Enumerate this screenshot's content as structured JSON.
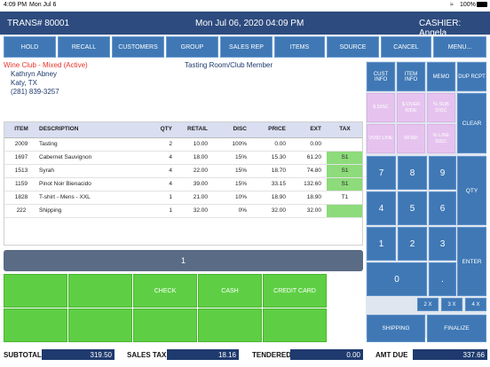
{
  "status": {
    "time": "4:09 PM",
    "date": "Mon Jul 6",
    "battery": "100%"
  },
  "header": {
    "trans": "TRANS# 80001",
    "datetime": "Mon Jul 06, 2020 04:09 PM",
    "cashier": "CASHIER: Angela"
  },
  "toolbar": [
    "HOLD",
    "RECALL",
    "CUSTOMERS",
    "GROUP",
    "SALES REP",
    "ITEMS",
    "SOURCE",
    "CANCEL",
    "MENU..."
  ],
  "customer": {
    "club": "Wine Club - Mixed (Active)",
    "name": "Kathryn Abney",
    "location": "Katy, TX",
    "phone": "(281) 839-3257",
    "type": "Tasting Room/Club Member"
  },
  "table": {
    "headers": [
      "ITEM",
      "DESCRIPTION",
      "QTY",
      "RETAIL",
      "DISC",
      "PRICE",
      "EXT",
      "TAX"
    ],
    "rows": [
      [
        "2009",
        "Tasting",
        "2",
        "10.00",
        "100%",
        "0.00",
        "0.00",
        ""
      ],
      [
        "1697",
        "Cabernet Sauvignon",
        "4",
        "18.00",
        "15%",
        "15.30",
        "61.20",
        "S1"
      ],
      [
        "1513",
        "Syrah",
        "4",
        "22.00",
        "15%",
        "18.70",
        "74.80",
        "S1"
      ],
      [
        "1159",
        "Pinot Noir Bienacido",
        "4",
        "39.00",
        "15%",
        "33.15",
        "132.60",
        "S1"
      ],
      [
        "1828",
        "T-shirt - Mens - XXL",
        "1",
        "21.00",
        "10%",
        "18.90",
        "18.90",
        "T1"
      ],
      [
        "222",
        "Shipping",
        "1",
        "32.00",
        "0%",
        "32.00",
        "32.00",
        ""
      ]
    ]
  },
  "qty_display": "1",
  "tender": {
    "check": "CHECK",
    "cash": "CASH",
    "credit": "CREDIT CARD"
  },
  "keypad": {
    "cust_info": "CUST INFO",
    "item_info": "ITEM INFO",
    "memo": "MEMO",
    "dup_rcpt": "DUP RCPT",
    "disc": "$ DISC",
    "override": "$ OVER RIDE",
    "sub_disc": "% SUB DISC",
    "clear": "CLEAR",
    "void_line": "VOID LINE",
    "rfnd": "RFND",
    "line_disc": "% LINE DISC",
    "digits": [
      "7",
      "8",
      "9",
      "4",
      "5",
      "6",
      "1",
      "2",
      "3",
      "0",
      "."
    ],
    "qty": "QTY",
    "enter": "ENTER",
    "mult": [
      "2 X",
      "3 X",
      "4 X"
    ],
    "shipping": "SHIPPING",
    "finalize": "FINALIZE"
  },
  "totals": {
    "subtotal_label": "SUBTOTAL",
    "subtotal": "319.50",
    "tax_label": "SALES TAX",
    "tax": "18.16",
    "tendered_label": "TENDERED",
    "tendered": "0.00",
    "due_label": "AMT DUE",
    "due": "337.66"
  },
  "colors": {
    "header": "#2d4b7e",
    "button_blue": "#3f78b5",
    "green": "#5ecf44",
    "pink_disabled": "#e6c3ee",
    "total_box": "#1e3a6e"
  }
}
